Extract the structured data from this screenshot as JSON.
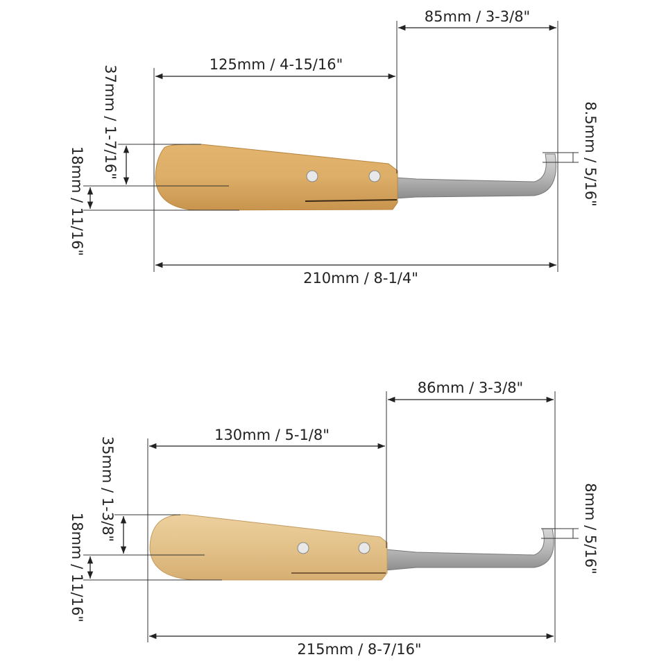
{
  "knives": [
    {
      "handle_length": "125mm / 4-15/16\"",
      "blade_length": "85mm / 3-3/8\"",
      "total_length": "210mm / 8-1/4\"",
      "handle_width": "37mm / 1-7/16\"",
      "handle_thickness": "18mm / 11/16\"",
      "hook_gap": "8.5mm / 5/16\""
    },
    {
      "handle_length": "130mm / 5-1/8\"",
      "blade_length": "86mm / 3-3/8\"",
      "total_length": "215mm / 8-7/16\"",
      "handle_width": "35mm / 1-3/8\"",
      "handle_thickness": "18mm / 11/16\"",
      "hook_gap": "8mm / 5/16\""
    }
  ]
}
